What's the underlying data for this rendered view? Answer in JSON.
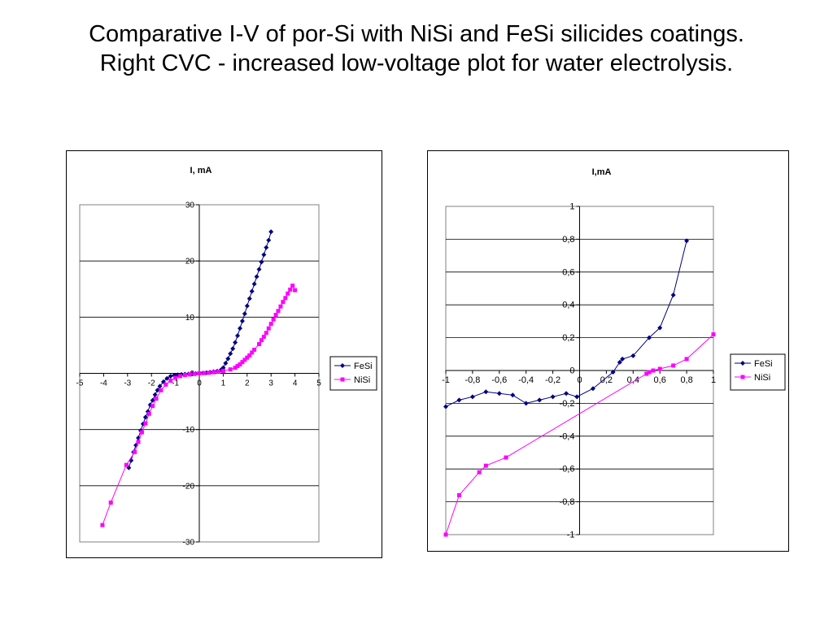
{
  "slide": {
    "title_line1": "Comparative I-V of por-Si with NiSi and FeSi silicides coatings.",
    "title_line2": "Right CVC - increased low-voltage plot for water electrolysis."
  },
  "chart_data": [
    {
      "type": "line",
      "title": "I, mA",
      "xlabel": "",
      "ylabel": "",
      "xlim": [
        -5,
        5
      ],
      "ylim": [
        -30,
        30
      ],
      "xticks": [
        -5,
        -4,
        -3,
        -2,
        -1,
        0,
        1,
        2,
        3,
        4,
        5
      ],
      "yticks": [
        -30,
        -20,
        -10,
        0,
        10,
        20,
        30
      ],
      "decimal_comma": false,
      "grid": "horizontal",
      "legend": "right",
      "series": [
        {
          "name": "FeSi",
          "color": "#000080",
          "marker": "diamond",
          "x": [
            -2.95,
            -2.85,
            -2.75,
            -2.65,
            -2.55,
            -2.45,
            -2.35,
            -2.25,
            -2.15,
            -2.05,
            -1.95,
            -1.85,
            -1.75,
            -1.65,
            -1.5,
            -1.35,
            -1.2,
            -1.05,
            -0.9,
            -0.75,
            -0.6,
            -0.45,
            -0.3,
            -0.15,
            0,
            0.15,
            0.3,
            0.45,
            0.6,
            0.75,
            0.9,
            1.0,
            1.1,
            1.2,
            1.3,
            1.4,
            1.5,
            1.6,
            1.7,
            1.8,
            1.9,
            2.0,
            2.1,
            2.2,
            2.3,
            2.4,
            2.5,
            2.6,
            2.7,
            2.8,
            2.9,
            3.0
          ],
          "y": [
            -16.8,
            -15.5,
            -14.0,
            -12.8,
            -11.5,
            -10.2,
            -9.0,
            -7.8,
            -6.8,
            -5.6,
            -4.8,
            -3.8,
            -3.0,
            -2.3,
            -1.5,
            -0.9,
            -0.5,
            -0.35,
            -0.25,
            -0.2,
            -0.15,
            -0.1,
            -0.05,
            -0.03,
            0,
            0.05,
            0.1,
            0.2,
            0.3,
            0.4,
            0.6,
            1.0,
            1.8,
            2.6,
            3.5,
            4.4,
            5.5,
            6.7,
            8.0,
            9.3,
            10.6,
            12.0,
            13.3,
            14.6,
            15.9,
            17.2,
            18.5,
            19.8,
            21.1,
            22.4,
            23.7,
            25.2
          ]
        },
        {
          "name": "NiSi",
          "color": "#FF00FF",
          "marker": "square",
          "x": [
            -4.05,
            -3.7,
            -3.05,
            -2.7,
            -2.55,
            -2.4,
            -2.25,
            -2.1,
            -1.95,
            -1.8,
            -1.6,
            -1.4,
            -1.2,
            -1.0,
            -0.8,
            -0.6,
            -0.4,
            -0.2,
            0,
            0.2,
            0.4,
            0.6,
            0.8,
            1.0,
            1.3,
            1.5,
            1.6,
            1.7,
            1.8,
            1.9,
            2.0,
            2.1,
            2.2,
            2.3,
            2.5,
            2.6,
            2.7,
            2.8,
            2.9,
            3.0,
            3.1,
            3.2,
            3.3,
            3.4,
            3.5,
            3.6,
            3.7,
            3.8,
            3.9,
            4.0
          ],
          "y": [
            -27.0,
            -23.0,
            -16.3,
            -14.0,
            -12.2,
            -10.5,
            -8.9,
            -7.2,
            -5.8,
            -4.5,
            -3.0,
            -2.0,
            -1.3,
            -0.8,
            -0.5,
            -0.3,
            -0.2,
            -0.1,
            0,
            0.05,
            0.1,
            0.2,
            0.3,
            0.45,
            0.7,
            1.0,
            1.3,
            1.6,
            2.0,
            2.4,
            2.8,
            3.2,
            3.7,
            4.2,
            5.2,
            5.9,
            6.5,
            7.2,
            8.0,
            8.8,
            9.6,
            10.4,
            11.1,
            11.9,
            12.7,
            13.4,
            14.2,
            14.9,
            15.6,
            14.8
          ]
        }
      ]
    },
    {
      "type": "line",
      "title": "I,mA",
      "xlabel": "",
      "ylabel": "",
      "xlim": [
        -1,
        1
      ],
      "ylim": [
        -1,
        1
      ],
      "xticks": [
        -1,
        -0.8,
        -0.6,
        -0.4,
        -0.2,
        0,
        0.2,
        0.4,
        0.6,
        0.8,
        1
      ],
      "yticks": [
        -1,
        -0.8,
        -0.6,
        -0.4,
        -0.2,
        0,
        0.2,
        0.4,
        0.6,
        0.8,
        1
      ],
      "decimal_comma": true,
      "grid": "horizontal",
      "legend": "right",
      "series": [
        {
          "name": "FeSi",
          "color": "#000080",
          "marker": "diamond",
          "x": [
            -1.0,
            -0.9,
            -0.8,
            -0.7,
            -0.6,
            -0.5,
            -0.4,
            -0.3,
            -0.2,
            -0.1,
            -0.02,
            0.1,
            0.25,
            0.3,
            0.32,
            0.4,
            0.52,
            0.6,
            0.7,
            0.8
          ],
          "y": [
            -0.22,
            -0.18,
            -0.16,
            -0.13,
            -0.14,
            -0.15,
            -0.2,
            -0.18,
            -0.16,
            -0.14,
            -0.16,
            -0.11,
            -0.01,
            0.05,
            0.07,
            0.09,
            0.2,
            0.26,
            0.46,
            0.79
          ]
        },
        {
          "name": "NiSi",
          "color": "#FF00FF",
          "marker": "square",
          "x": [
            -1.0,
            -0.9,
            -0.75,
            -0.7,
            -0.55,
            0.5,
            0.52,
            0.55,
            0.6,
            0.7,
            0.8,
            1.0
          ],
          "y": [
            -1.0,
            -0.76,
            -0.62,
            -0.58,
            -0.53,
            -0.02,
            -0.01,
            0.0,
            0.01,
            0.03,
            0.07,
            0.22
          ]
        }
      ]
    }
  ]
}
